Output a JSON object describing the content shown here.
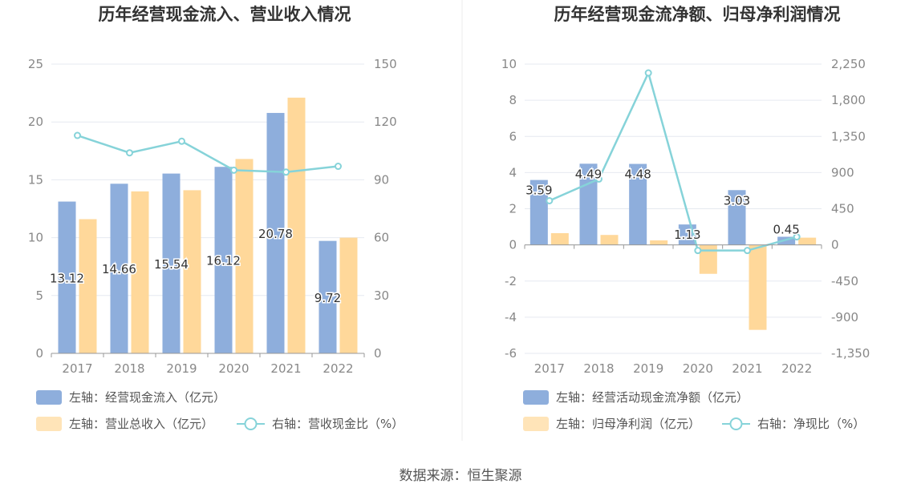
{
  "source": "数据来源：恒生聚源",
  "colors": {
    "blue": "#8eaedc",
    "orange": "#ffd89a",
    "line": "#86d3d9",
    "grid": "#e6e9f0",
    "axis": "#999999"
  },
  "chart_data": [
    {
      "type": "bar+line",
      "title": "历年经营现金流入、营业收入情况",
      "categories": [
        "2017",
        "2018",
        "2019",
        "2020",
        "2021",
        "2022"
      ],
      "left_axis": {
        "min": 0,
        "max": 25,
        "ticks": [
          "0",
          "5",
          "10",
          "15",
          "20",
          "25"
        ]
      },
      "right_axis": {
        "min": 0,
        "max": 150,
        "ticks": [
          "0",
          "30",
          "60",
          "90",
          "120",
          "150"
        ]
      },
      "series": [
        {
          "name": "左轴：经营现金流入（亿元）",
          "kind": "bar",
          "axis": "left",
          "color": "#8eaedc",
          "values": [
            13.12,
            14.66,
            15.54,
            16.12,
            20.78,
            9.72
          ],
          "labels": [
            "13.12",
            "14.66",
            "15.54",
            "16.12",
            "20.78",
            "9.72"
          ]
        },
        {
          "name": "左轴：营业总收入（亿元）",
          "kind": "bar",
          "axis": "left",
          "color": "#ffd89a",
          "values": [
            11.6,
            14.0,
            14.1,
            16.8,
            22.1,
            10.0
          ]
        },
        {
          "name": "右轴：营收现金比（%）",
          "kind": "line",
          "axis": "right",
          "color": "#86d3d9",
          "values": [
            113,
            104,
            110,
            95,
            94,
            97
          ]
        }
      ]
    },
    {
      "type": "bar+line",
      "title": "历年经营现金流净额、归母净利润情况",
      "categories": [
        "2017",
        "2018",
        "2019",
        "2020",
        "2021",
        "2022"
      ],
      "left_axis": {
        "min": -6,
        "max": 10,
        "ticks": [
          "-6",
          "-4",
          "-2",
          "0",
          "2",
          "4",
          "6",
          "8",
          "10"
        ]
      },
      "right_axis": {
        "min": -1350,
        "max": 2250,
        "ticks": [
          "-1,350",
          "-900",
          "-450",
          "0",
          "450",
          "900",
          "1,350",
          "1,800",
          "2,250"
        ]
      },
      "series": [
        {
          "name": "左轴：经营活动现金流净额（亿元）",
          "kind": "bar",
          "axis": "left",
          "color": "#8eaedc",
          "values": [
            3.59,
            4.49,
            4.48,
            1.13,
            3.03,
            0.45
          ],
          "labels": [
            "3.59",
            "4.49",
            "4.48",
            "1.13",
            "3.03",
            "0.45"
          ]
        },
        {
          "name": "左轴：归母净利润（亿元）",
          "kind": "bar",
          "axis": "left",
          "color": "#ffd89a",
          "values": [
            0.65,
            0.55,
            0.25,
            -1.6,
            -4.7,
            0.4
          ]
        },
        {
          "name": "右轴：净现比（%）",
          "kind": "line",
          "axis": "right",
          "color": "#86d3d9",
          "values": [
            550,
            820,
            2140,
            -70,
            -70,
            100
          ]
        }
      ]
    }
  ]
}
